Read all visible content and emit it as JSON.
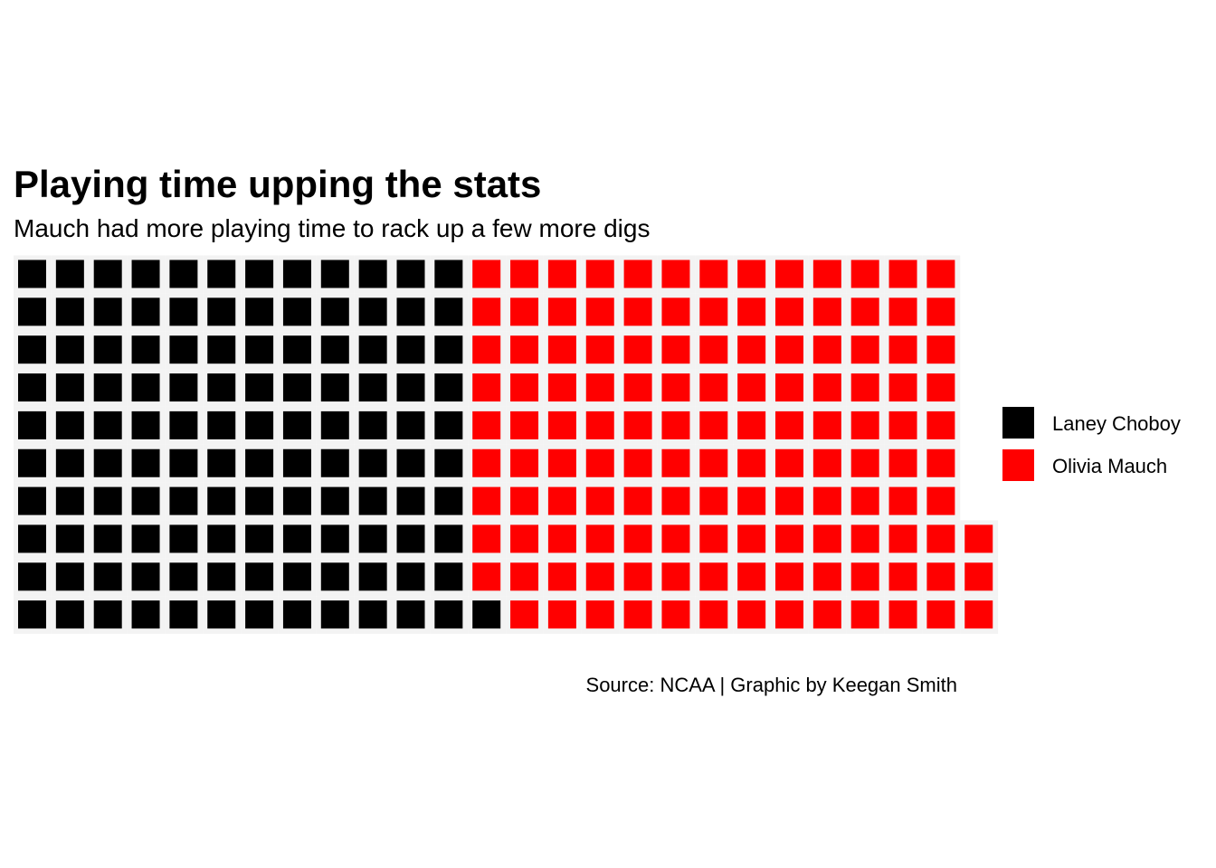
{
  "chart_data": {
    "type": "waffle",
    "title": "Playing time upping the stats",
    "subtitle": "Mauch had more playing time to rack up a few more digs",
    "caption": "Source: NCAA | Graphic by Keegan Smith",
    "legend_position": "right",
    "rows": 10,
    "series": [
      {
        "name": "Laney Choboy",
        "value": 121,
        "color": "#000000"
      },
      {
        "name": "Olivia Mauch",
        "value": 132,
        "color": "#ff0000"
      }
    ]
  }
}
